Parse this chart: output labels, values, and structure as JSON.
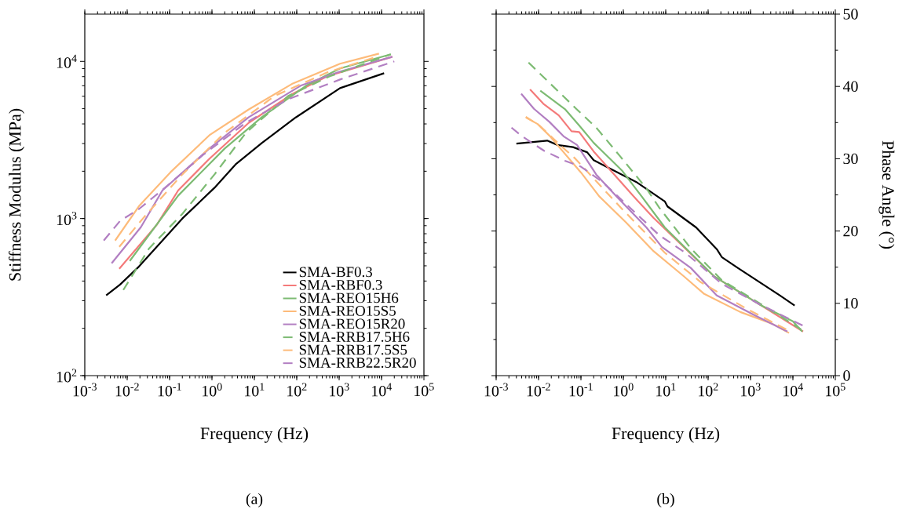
{
  "chart_data": [
    {
      "type": "line",
      "xlabel": "Frequency (Hz)",
      "ylabel": "Stiffness Modulus (MPa)",
      "log": "xy",
      "legend": "bottom right",
      "xlim": [
        0.001,
        100000
      ],
      "ylim": [
        100,
        20000
      ],
      "xticks": [
        {
          "value": 0.001,
          "label": "10$^{-3}$"
        },
        {
          "value": 0.01,
          "label": "10$^{-2}$"
        },
        {
          "value": 0.1,
          "label": "10$^{-1}$"
        },
        {
          "value": 1,
          "label": "10$^{0}$"
        },
        {
          "value": 10,
          "label": "10$^{1}$"
        },
        {
          "value": 100,
          "label": "10$^{2}$"
        },
        {
          "value": 1000,
          "label": "10$^{3}$"
        },
        {
          "value": 10000,
          "label": "10$^{4}$"
        },
        {
          "value": 100000,
          "label": "10$^{5}$"
        }
      ],
      "yticks": [
        {
          "value": 100,
          "label": "10$^{2}$"
        },
        {
          "value": 1000,
          "label": "10$^{3}$"
        },
        {
          "value": 10000,
          "label": "10$^{4}$"
        }
      ],
      "annotations": [
        "(a)"
      ],
      "series": [
        {
          "name": "SMA-BF0.3",
          "color": "#000000",
          "line_style": "solid",
          "x": [
            0.0032,
            0.0068,
            0.019,
            0.2,
            1.15,
            3.6,
            15,
            95,
            1050,
            11500
          ],
          "values": [
            324,
            380,
            495,
            1000,
            1570,
            2210,
            3020,
            4400,
            6760,
            8410
          ]
        },
        {
          "name": "SMA-RBF0.3",
          "color": "#f47a7a",
          "line_style": "solid",
          "x": [
            0.0065,
            0.05,
            0.16,
            0.87,
            7.4,
            81,
            525,
            18000
          ],
          "values": [
            479,
            912,
            1510,
            2400,
            4070,
            6230,
            8040,
            10700
          ]
        },
        {
          "name": "SMA-REO15H6",
          "color": "#7dbb73",
          "line_style": "solid",
          "x": [
            0.0115,
            0.16,
            2.0,
            15,
            166,
            1050,
            16600
          ],
          "values": [
            537,
            1400,
            2790,
            4420,
            7000,
            9020,
            11100
          ]
        },
        {
          "name": "SMA-REO15S5",
          "color": "#fdbb7a",
          "line_style": "solid",
          "x": [
            0.0052,
            0.019,
            0.105,
            0.87,
            7.4,
            81,
            1050,
            8700
          ],
          "values": [
            724,
            1200,
            1970,
            3390,
            4950,
            7240,
            9670,
            11200
          ]
        },
        {
          "name": "SMA-REO15R20",
          "color": "#b27fc2",
          "line_style": "solid",
          "x": [
            0.0043,
            0.021,
            0.068,
            0.87,
            7.4,
            123,
            1050,
            18000
          ],
          "values": [
            519,
            880,
            1510,
            2790,
            4420,
            7000,
            8610,
            10700
          ]
        },
        {
          "name": "SMA-RRB17.5H6",
          "color": "#7dbb73",
          "line_style": "dashed",
          "x": [
            0.0081,
            0.033,
            0.2,
            1.15,
            6.3,
            63,
            600,
            16600
          ],
          "values": [
            351,
            646,
            1070,
            1910,
            3510,
            6030,
            8040,
            11100
          ]
        },
        {
          "name": "SMA-RRB17.5S5",
          "color": "#fdbb7a",
          "line_style": "dashed",
          "x": [
            0.0065,
            0.025,
            0.2,
            2.0,
            30,
            525,
            8700
          ],
          "values": [
            661,
            1020,
            1910,
            3510,
            6030,
            8510,
            10800
          ]
        },
        {
          "name": "SMA-RRB22.5R20",
          "color": "#b27fc2",
          "line_style": "dashed",
          "x": [
            0.0028,
            0.0068,
            0.019,
            0.078,
            0.65,
            6.3,
            63,
            1050,
            20000
          ],
          "values": [
            724,
            966,
            1150,
            1570,
            2570,
            4070,
            5750,
            7670,
            10000
          ]
        }
      ]
    },
    {
      "type": "line",
      "xlabel": "Frequency (Hz)",
      "ylabel": "Phase Angle (°)",
      "log": "x",
      "xlim": [
        0.001,
        100000
      ],
      "ylim": [
        0,
        50
      ],
      "xticks": [
        {
          "value": 0.001,
          "label": "10$^{-3}$"
        },
        {
          "value": 0.01,
          "label": "10$^{-2}$"
        },
        {
          "value": 0.1,
          "label": "10$^{-1}$"
        },
        {
          "value": 1,
          "label": "10$^{0}$"
        },
        {
          "value": 10,
          "label": "10$^{1}$"
        },
        {
          "value": 100,
          "label": "10$^{2}$"
        },
        {
          "value": 1000,
          "label": "10$^{3}$"
        },
        {
          "value": 10000,
          "label": "10$^{4}$"
        },
        {
          "value": 100000,
          "label": "10$^{5}$"
        }
      ],
      "yticks": [
        0,
        10,
        20,
        30,
        40,
        50
      ],
      "annotations": [
        "(b)"
      ],
      "series": [
        {
          "color": "#000000",
          "line_style": "solid",
          "x": [
            0.003,
            0.016,
            0.028,
            0.065,
            0.14,
            0.2,
            2.0,
            9.5,
            11,
            52,
            160,
            210,
            500,
            4900,
            11000
          ],
          "values": [
            32.1,
            32.5,
            31.9,
            31.6,
            30.9,
            29.8,
            26.8,
            24.1,
            23.4,
            20.5,
            17.5,
            16.4,
            14.9,
            11.1,
            9.7
          ]
        },
        {
          "color": "#f47a7a",
          "line_style": "solid",
          "x": [
            0.0063,
            0.013,
            0.03,
            0.06,
            0.091,
            0.2,
            1.74,
            5.2,
            141,
            1800,
            17400
          ],
          "values": [
            39.6,
            37.6,
            36.0,
            33.8,
            33.7,
            31.0,
            24.8,
            21.8,
            13.7,
            9.7,
            6.1
          ]
        },
        {
          "color": "#7dbb73",
          "line_style": "solid",
          "x": [
            0.011,
            0.043,
            0.091,
            0.2,
            0.95,
            2.7,
            9.5,
            141,
            1800,
            10000,
            16600
          ],
          "values": [
            39.4,
            36.8,
            34.6,
            32.2,
            28.3,
            24.8,
            20.5,
            13.7,
            9.7,
            7.5,
            6.1
          ]
        },
        {
          "color": "#fdbb7a",
          "line_style": "solid",
          "x": [
            0.005,
            0.0095,
            0.018,
            0.1,
            0.27,
            1.15,
            5.2,
            26,
            81,
            575,
            3200,
            8100
          ],
          "values": [
            35.7,
            34.8,
            33.2,
            28.1,
            24.8,
            21.2,
            17.2,
            13.8,
            11.3,
            8.8,
            7.2,
            5.9
          ]
        },
        {
          "color": "#b27fc2",
          "line_style": "solid",
          "x": [
            0.0039,
            0.0078,
            0.018,
            0.039,
            0.081,
            0.23,
            0.74,
            3.5,
            8.1,
            39,
            160,
            1200,
            7400
          ],
          "values": [
            39.0,
            36.9,
            35.1,
            33.1,
            31.9,
            27.8,
            24.6,
            20.5,
            17.8,
            14.9,
            11.1,
            8.4,
            6.1
          ]
        },
        {
          "color": "#7dbb73",
          "line_style": "dashed",
          "x": [
            0.0058,
            0.016,
            0.081,
            0.23,
            0.85,
            3.5,
            7.1,
            39,
            210,
            1200,
            15500
          ],
          "values": [
            43.3,
            40.8,
            36.8,
            34.3,
            30.3,
            25.9,
            23.2,
            17.6,
            13.2,
            10.5,
            6.4
          ]
        },
        {
          "color": "#fdbb7a",
          "line_style": "dashed",
          "x": [
            0.005,
            0.0105,
            0.032,
            0.074,
            0.49,
            0.95,
            9.5,
            68,
            780,
            8700
          ],
          "values": [
            35.8,
            34.6,
            31.9,
            30.0,
            24.8,
            23.0,
            17.0,
            12.9,
            9.3,
            6.1
          ]
        },
        {
          "color": "#b27fc2",
          "line_style": "dashed",
          "x": [
            0.0023,
            0.0041,
            0.0135,
            0.043,
            0.1,
            0.32,
            0.74,
            7.1,
            29,
            210,
            1600,
            17400
          ],
          "values": [
            34.3,
            33.1,
            31.1,
            29.7,
            28.9,
            26.8,
            24.8,
            19.4,
            17.0,
            12.7,
            9.9,
            6.9
          ]
        }
      ]
    }
  ]
}
